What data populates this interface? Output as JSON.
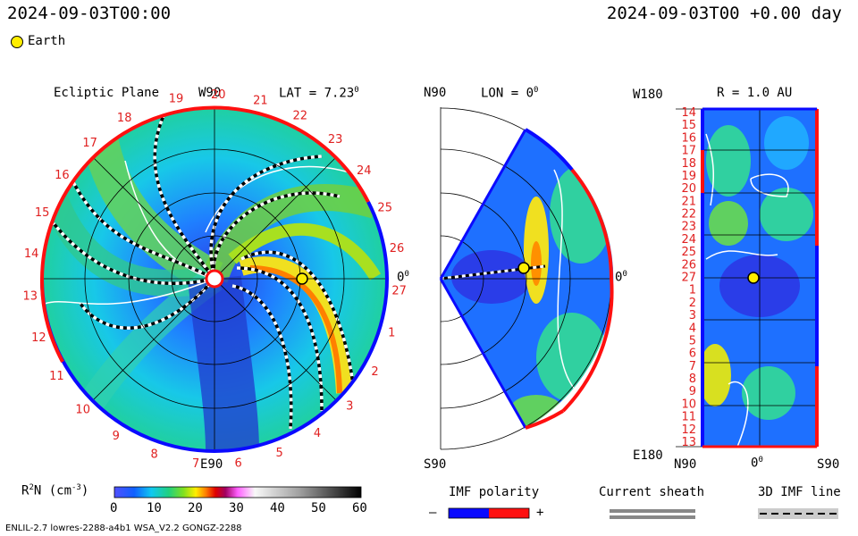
{
  "header": {
    "left_time": "2024-09-03T00:00",
    "right_time": "2024-09-03T00 +0.00 day",
    "earth_legend": "Earth"
  },
  "panels": {
    "ecliptic": {
      "title": "Ecliptic Plane",
      "lat_label": "LAT = 7.23",
      "lat_sup": "0",
      "top_label": "W90",
      "bottom_label": "E90",
      "right_label": "0",
      "right_sup": "0",
      "carrington_ticks": [
        "19",
        "20",
        "21",
        "22",
        "23",
        "24",
        "25",
        "26",
        "27",
        "1",
        "2",
        "3",
        "4",
        "5",
        "6",
        "7",
        "8",
        "9",
        "10",
        "11",
        "12",
        "13",
        "14",
        "15",
        "16",
        "17",
        "18"
      ]
    },
    "meridional": {
      "top_left": "N90",
      "lon_label": "LON = 0",
      "lon_sup": "0",
      "right_label": "0",
      "right_sup": "0",
      "bottom_left": "S90"
    },
    "synoptic": {
      "top_left": "W180",
      "r_label": "R = 1.0 AU",
      "bottom_left": "E180",
      "x_labels": [
        "N90",
        "0",
        "S90"
      ],
      "x_sup": "0",
      "y_labels": [
        "14",
        "15",
        "16",
        "17",
        "18",
        "19",
        "20",
        "21",
        "22",
        "23",
        "24",
        "25",
        "26",
        "27",
        "1",
        "2",
        "3",
        "4",
        "5",
        "6",
        "7",
        "8",
        "9",
        "10",
        "11",
        "12",
        "13"
      ]
    }
  },
  "colorbar": {
    "label": "R",
    "label_sup": "2",
    "label_rest": "N (cm",
    "label_exp": "-3",
    "label_close": ")",
    "ticks": [
      "0",
      "10",
      "20",
      "30",
      "40",
      "50",
      "60"
    ]
  },
  "legends": {
    "imf_polarity": "IMF polarity",
    "minus": "–",
    "plus": "+",
    "current_sheath": "Current sheath",
    "imf_line": "3D IMF line"
  },
  "footer": {
    "run_info": "ENLIL-2.7 lowres-2288-a4b1 WSA_V2.2 GONGZ-2288"
  },
  "colors": {
    "polarity_negative": "#0a0aff",
    "polarity_positive": "#ff1010",
    "earth": "#ffee00",
    "ticks_red": "#e02020"
  }
}
